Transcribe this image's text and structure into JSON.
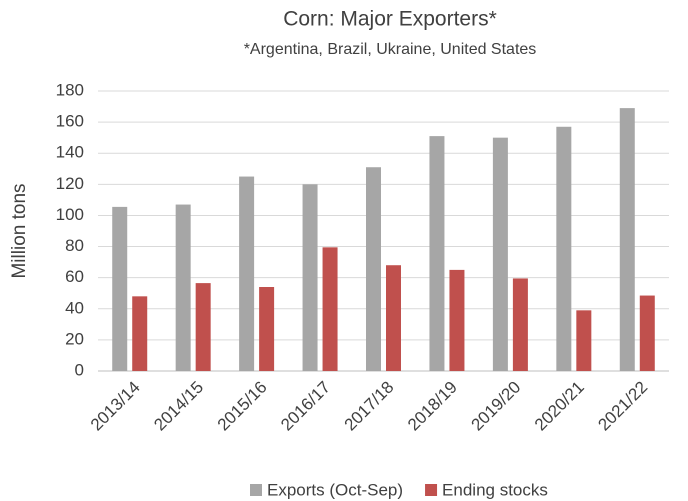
{
  "chart_data": {
    "type": "bar",
    "title": "Corn: Major Exporters*",
    "subtitle": "*Argentina, Brazil, Ukraine, United States",
    "y_label": "Million tons",
    "categories": [
      "2013/14",
      "2014/15",
      "2015/16",
      "2016/17",
      "2017/18",
      "2018/19",
      "2019/20",
      "2020/21",
      "2021/22"
    ],
    "series": [
      {
        "name": "Exports (Oct-Sep)",
        "color": "#a6a6a6",
        "values": [
          105.5,
          107,
          125,
          120,
          131,
          151,
          150,
          157,
          169
        ]
      },
      {
        "name": "Ending stocks",
        "color": "#c0504d",
        "values": [
          48,
          56.5,
          54,
          79.5,
          68,
          65,
          59.5,
          39,
          48.5
        ]
      }
    ],
    "ylim": [
      0,
      180
    ],
    "yticks": [
      0,
      20,
      40,
      60,
      80,
      100,
      120,
      140,
      160,
      180
    ],
    "grid": true,
    "legend": "bottom"
  }
}
